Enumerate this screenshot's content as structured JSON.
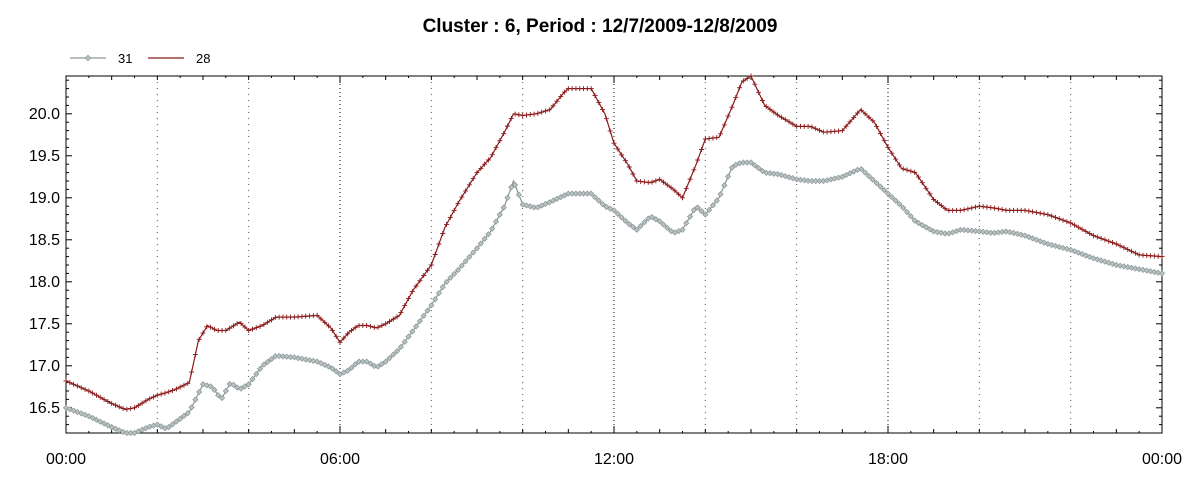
{
  "chart_data": {
    "type": "line",
    "title": "Cluster : 6, Period : 12/7/2009-12/8/2009",
    "xlabel": "",
    "ylabel": "",
    "x_unit": "hours since 00:00",
    "xlim": [
      0,
      24
    ],
    "ylim": [
      16.2,
      20.45
    ],
    "x_tick_labels": [
      "00:00",
      "06:00",
      "12:00",
      "18:00",
      "00:00"
    ],
    "y_tick_labels": [
      "16.5",
      "17.0",
      "17.5",
      "18.0",
      "18.5",
      "19.0",
      "19.5",
      "20.0"
    ],
    "grid": "vertical dotted lines every 2 hours",
    "legend_position": "top-left",
    "series": [
      {
        "name": "31",
        "color": "#8a9696",
        "marker": "diamond",
        "x": [
          0,
          0.5,
          1,
          1.3,
          1.5,
          1.8,
          2,
          2.2,
          2.4,
          2.7,
          3,
          3.2,
          3.4,
          3.6,
          3.8,
          4,
          4.3,
          4.6,
          5,
          5.5,
          5.8,
          6,
          6.2,
          6.4,
          6.6,
          6.8,
          7,
          7.3,
          7.6,
          8,
          8.3,
          8.6,
          9,
          9.3,
          9.6,
          9.8,
          10,
          10.3,
          10.6,
          11,
          11.5,
          11.8,
          12,
          12.3,
          12.5,
          12.8,
          13,
          13.3,
          13.5,
          13.8,
          14,
          14.3,
          14.6,
          14.8,
          15,
          15.3,
          15.6,
          16,
          16.3,
          16.6,
          17,
          17.4,
          17.7,
          18,
          18.3,
          18.6,
          19,
          19.3,
          19.6,
          20,
          20.3,
          20.6,
          21,
          21.5,
          22,
          22.5,
          23,
          23.5,
          24
        ],
        "values": [
          16.5,
          16.4,
          16.27,
          16.2,
          16.2,
          16.27,
          16.3,
          16.25,
          16.33,
          16.45,
          16.78,
          16.75,
          16.6,
          16.8,
          16.72,
          16.78,
          17.0,
          17.12,
          17.1,
          17.05,
          16.98,
          16.9,
          16.95,
          17.05,
          17.05,
          16.98,
          17.05,
          17.2,
          17.42,
          17.72,
          17.98,
          18.15,
          18.4,
          18.6,
          18.9,
          19.2,
          18.92,
          18.88,
          18.95,
          19.05,
          19.05,
          18.9,
          18.85,
          18.7,
          18.62,
          18.78,
          18.72,
          18.58,
          18.62,
          18.9,
          18.8,
          19.0,
          19.38,
          19.42,
          19.42,
          19.3,
          19.28,
          19.22,
          19.2,
          19.2,
          19.25,
          19.35,
          19.2,
          19.05,
          18.9,
          18.72,
          18.6,
          18.57,
          18.62,
          18.6,
          18.58,
          18.6,
          18.55,
          18.45,
          18.38,
          18.28,
          18.2,
          18.15,
          18.1
        ]
      },
      {
        "name": "28",
        "color": "#8b1a1a",
        "marker": "plus",
        "x": [
          0,
          0.5,
          1,
          1.3,
          1.5,
          1.8,
          2,
          2.2,
          2.4,
          2.7,
          2.9,
          3.1,
          3.3,
          3.5,
          3.8,
          4,
          4.3,
          4.6,
          5,
          5.5,
          5.8,
          6,
          6.2,
          6.4,
          6.6,
          6.8,
          7,
          7.3,
          7.6,
          8,
          8.3,
          8.6,
          9,
          9.3,
          9.6,
          9.8,
          10,
          10.3,
          10.6,
          10.9,
          11,
          11.5,
          11.8,
          12,
          12.3,
          12.5,
          12.8,
          13,
          13.3,
          13.5,
          13.8,
          14,
          14.3,
          14.6,
          14.8,
          15,
          15.3,
          15.6,
          16,
          16.3,
          16.6,
          17,
          17.4,
          17.7,
          18,
          18.3,
          18.6,
          19,
          19.3,
          19.6,
          20,
          20.3,
          20.6,
          21,
          21.5,
          22,
          22.5,
          23,
          23.5,
          24
        ],
        "values": [
          16.82,
          16.7,
          16.55,
          16.48,
          16.5,
          16.6,
          16.65,
          16.68,
          16.72,
          16.8,
          17.3,
          17.48,
          17.42,
          17.42,
          17.52,
          17.42,
          17.48,
          17.58,
          17.58,
          17.6,
          17.45,
          17.28,
          17.4,
          17.48,
          17.48,
          17.45,
          17.5,
          17.6,
          17.9,
          18.2,
          18.65,
          18.95,
          19.3,
          19.48,
          19.78,
          20.0,
          19.98,
          20.0,
          20.05,
          20.25,
          20.3,
          20.3,
          20.0,
          19.65,
          19.4,
          19.2,
          19.18,
          19.22,
          19.1,
          19.0,
          19.4,
          19.7,
          19.72,
          20.1,
          20.38,
          20.45,
          20.1,
          19.98,
          19.85,
          19.85,
          19.78,
          19.8,
          20.05,
          19.9,
          19.6,
          19.35,
          19.3,
          18.98,
          18.85,
          18.85,
          18.9,
          18.88,
          18.85,
          18.85,
          18.8,
          18.7,
          18.55,
          18.45,
          18.32,
          18.3
        ]
      }
    ]
  }
}
